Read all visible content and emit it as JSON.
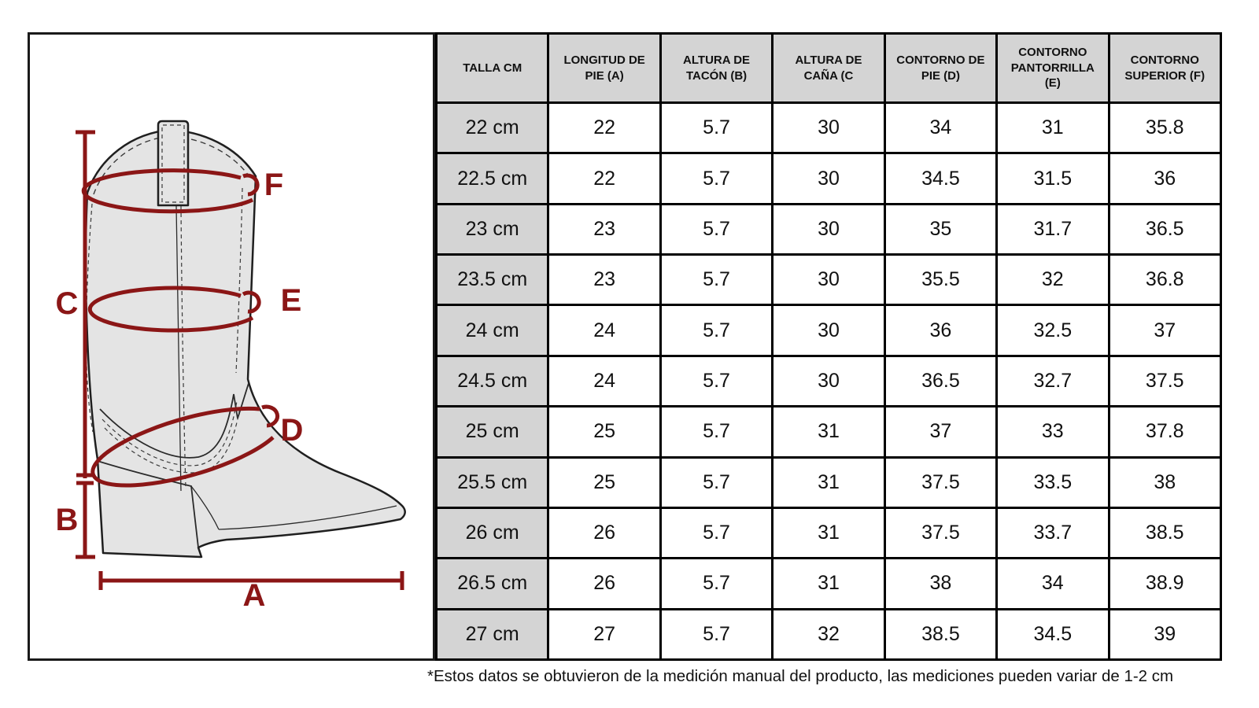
{
  "colors": {
    "accent_red": "#8B1616",
    "table_header_bg": "#D4D4D4",
    "boot_fill": "#E4E4E4",
    "border_black": "#1A1A1A"
  },
  "diagram": {
    "labels": {
      "a": "A",
      "b": "B",
      "c": "C",
      "d": "D",
      "e": "E",
      "f": "F"
    }
  },
  "table": {
    "size_header": "TALLA CM",
    "columns": [
      "LONGITUD DE PIE (A)",
      "ALTURA DE TACÓN (B)",
      "ALTURA DE CAÑA (C",
      "CONTORNO DE PIE (D)",
      "CONTORNO PANTORRILLA (E)",
      "CONTORNO SUPERIOR (F)"
    ],
    "rows": [
      {
        "size": "22 cm",
        "values": [
          "22",
          "5.7",
          "30",
          "34",
          "31",
          "35.8"
        ]
      },
      {
        "size": "22.5 cm",
        "values": [
          "22",
          "5.7",
          "30",
          "34.5",
          "31.5",
          "36"
        ]
      },
      {
        "size": "23 cm",
        "values": [
          "23",
          "5.7",
          "30",
          "35",
          "31.7",
          "36.5"
        ]
      },
      {
        "size": "23.5 cm",
        "values": [
          "23",
          "5.7",
          "30",
          "35.5",
          "32",
          "36.8"
        ]
      },
      {
        "size": "24 cm",
        "values": [
          "24",
          "5.7",
          "30",
          "36",
          "32.5",
          "37"
        ]
      },
      {
        "size": "24.5 cm",
        "values": [
          "24",
          "5.7",
          "30",
          "36.5",
          "32.7",
          "37.5"
        ]
      },
      {
        "size": "25 cm",
        "values": [
          "25",
          "5.7",
          "31",
          "37",
          "33",
          "37.8"
        ]
      },
      {
        "size": "25.5 cm",
        "values": [
          "25",
          "5.7",
          "31",
          "37.5",
          "33.5",
          "38"
        ]
      },
      {
        "size": "26 cm",
        "values": [
          "26",
          "5.7",
          "31",
          "37.5",
          "33.7",
          "38.5"
        ]
      },
      {
        "size": "26.5 cm",
        "values": [
          "26",
          "5.7",
          "31",
          "38",
          "34",
          "38.9"
        ]
      },
      {
        "size": "27 cm",
        "values": [
          "27",
          "5.7",
          "32",
          "38.5",
          "34.5",
          "39"
        ]
      }
    ]
  },
  "footnote": "*Estos datos se obtuvieron de la medición manual del producto, las mediciones pueden variar de 1-2 cm"
}
